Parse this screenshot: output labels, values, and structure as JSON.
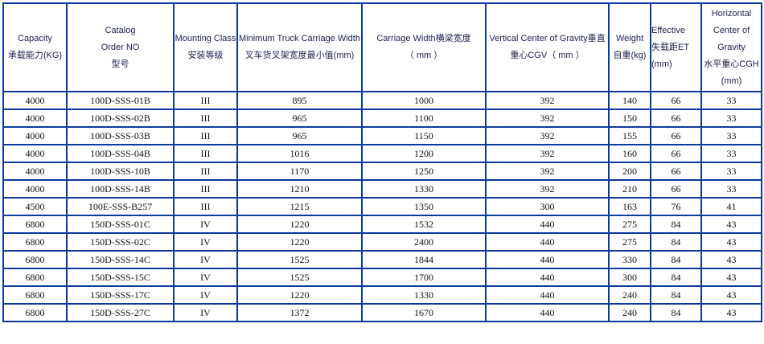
{
  "colors": {
    "border": "#0b3a9c",
    "header_text": "#1b1f4f"
  },
  "headers": [
    [
      "Capacity",
      "承载能力(KG)"
    ],
    [
      "Catalog",
      "Order NO",
      "型号"
    ],
    [
      "Mounting Class",
      "安装等级"
    ],
    [
      "Minimum Truck Carriage Width",
      "叉车货叉架宽度最小值(mm)"
    ],
    [
      "Carriage Width横梁宽度",
      "（ mm ）"
    ],
    [
      "Vertical Center of Gravity垂直",
      "重心CGV（ mm ）"
    ],
    [
      "Weight",
      "自重(kg)"
    ],
    [
      "Effective",
      "失载距ET",
      "(mm)"
    ],
    [
      "Horizontal",
      "Center of",
      "Gravity",
      "水平重心CGH",
      "(mm)"
    ]
  ],
  "rows": [
    [
      "4000",
      "100D-SSS-01B",
      "III",
      "895",
      "1000",
      "392",
      "140",
      "66",
      "33"
    ],
    [
      "4000",
      "100D-SSS-02B",
      "III",
      "965",
      "1100",
      "392",
      "150",
      "66",
      "33"
    ],
    [
      "4000",
      "100D-SSS-03B",
      "III",
      "965",
      "1150",
      "392",
      "155",
      "66",
      "33"
    ],
    [
      "4000",
      "100D-SSS-04B",
      "III",
      "1016",
      "1200",
      "392",
      "160",
      "66",
      "33"
    ],
    [
      "4000",
      "100D-SSS-10B",
      "III",
      "1170",
      "1250",
      "392",
      "200",
      "66",
      "33"
    ],
    [
      "4000",
      "100D-SSS-14B",
      "III",
      "1210",
      "1330",
      "392",
      "210",
      "66",
      "33"
    ],
    [
      "4500",
      "100E-SSS-B257",
      "III",
      "1215",
      "1350",
      "300",
      "163",
      "76",
      "41"
    ],
    [
      "6800",
      "150D-SSS-01C",
      "IV",
      "1220",
      "1532",
      "440",
      "275",
      "84",
      "43"
    ],
    [
      "6800",
      "150D-SSS-02C",
      "IV",
      "1220",
      "2400",
      "440",
      "275",
      "84",
      "43"
    ],
    [
      "6800",
      "150D-SSS-14C",
      "IV",
      "1525",
      "1844",
      "440",
      "330",
      "84",
      "43"
    ],
    [
      "6800",
      "150D-SSS-15C",
      "IV",
      "1525",
      "1700",
      "440",
      "300",
      "84",
      "43"
    ],
    [
      "6800",
      "150D-SSS-17C",
      "IV",
      "1220",
      "1330",
      "440",
      "240",
      "84",
      "43"
    ],
    [
      "6800",
      "150D-SSS-27C",
      "IV",
      "1372",
      "1670",
      "440",
      "240",
      "84",
      "43"
    ]
  ]
}
